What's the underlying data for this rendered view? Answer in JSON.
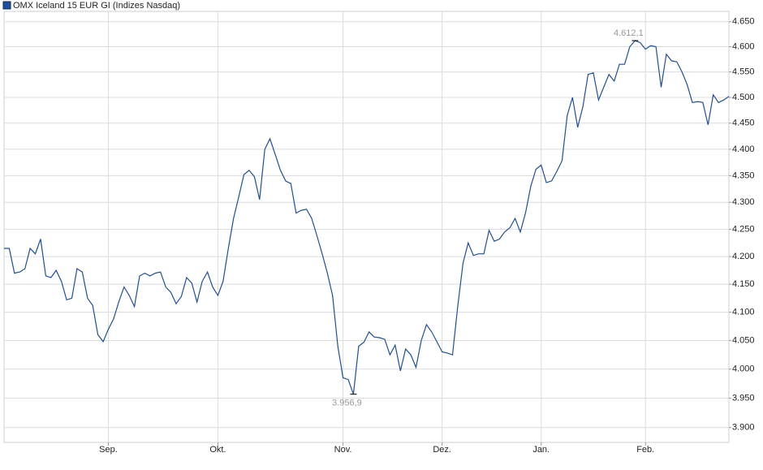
{
  "chart_data": {
    "type": "line",
    "log_y": true,
    "grid": true,
    "series": [
      {
        "name": "OMX Iceland 15 EUR GI  (Indizes Nasdaq)",
        "color": "#1f4e9a",
        "values": [
          4215,
          4215,
          4170,
          4172,
          4178,
          4215,
          4205,
          4232,
          4165,
          4162,
          4175,
          4155,
          4122,
          4125,
          4178,
          4172,
          4125,
          4112,
          4060,
          4048,
          4070,
          4088,
          4118,
          4145,
          4130,
          4110,
          4165,
          4170,
          4165,
          4170,
          4172,
          4145,
          4135,
          4115,
          4128,
          4162,
          4152,
          4118,
          4155,
          4172,
          4145,
          4130,
          4155,
          4215,
          4270,
          4310,
          4352,
          4360,
          4348,
          4305,
          4400,
          4420,
          4390,
          4360,
          4340,
          4335,
          4280,
          4285,
          4287,
          4270,
          4238,
          4205,
          4170,
          4130,
          4040,
          3985,
          3982,
          3956.9,
          4040,
          4047,
          4065,
          4056,
          4055,
          4052,
          4025,
          4042,
          3997,
          4035,
          4025,
          4003,
          4050,
          4078,
          4065,
          4048,
          4030,
          4028,
          4025,
          4110,
          4188,
          4225,
          4202,
          4205,
          4205,
          4248,
          4228,
          4232,
          4245,
          4253,
          4270,
          4245,
          4280,
          4330,
          4362,
          4370,
          4337,
          4340,
          4358,
          4378,
          4465,
          4500,
          4442,
          4482,
          4545,
          4548,
          4495,
          4520,
          4545,
          4532,
          4565,
          4565,
          4600,
          4612.1,
          4608,
          4595,
          4602,
          4600,
          4520,
          4585,
          4572,
          4570,
          4550,
          4525,
          4490,
          4492,
          4490,
          4447,
          4505,
          4490,
          4495,
          4502
        ]
      }
    ],
    "xlim": [
      0,
      139
    ],
    "xticks": [
      {
        "value": 20,
        "label": "Sep."
      },
      {
        "value": 41,
        "label": "Okt."
      },
      {
        "value": 65,
        "label": "Nov."
      },
      {
        "value": 84,
        "label": "Dez."
      },
      {
        "value": 103,
        "label": "Jan."
      },
      {
        "value": 123,
        "label": "Feb."
      }
    ],
    "ylim": [
      3875,
      4671
    ],
    "yticks": [
      {
        "value": 3900,
        "label": "3.900"
      },
      {
        "value": 3950,
        "label": "3.950"
      },
      {
        "value": 4000,
        "label": "4.000"
      },
      {
        "value": 4050,
        "label": "4.050"
      },
      {
        "value": 4100,
        "label": "4.100"
      },
      {
        "value": 4150,
        "label": "4.150"
      },
      {
        "value": 4200,
        "label": "4.200"
      },
      {
        "value": 4250,
        "label": "4.250"
      },
      {
        "value": 4300,
        "label": "4.300"
      },
      {
        "value": 4350,
        "label": "4.350"
      },
      {
        "value": 4400,
        "label": "4.400"
      },
      {
        "value": 4450,
        "label": "4.450"
      },
      {
        "value": 4500,
        "label": "4.500"
      },
      {
        "value": 4550,
        "label": "4.550"
      },
      {
        "value": 4600,
        "label": "4.600"
      },
      {
        "value": 4650,
        "label": "4.650"
      }
    ],
    "annotations": [
      {
        "index": 121,
        "value": 4612.1,
        "label": "4.612,1"
      },
      {
        "index": 67,
        "value": 3956.9,
        "label": "3.956,9"
      }
    ]
  }
}
